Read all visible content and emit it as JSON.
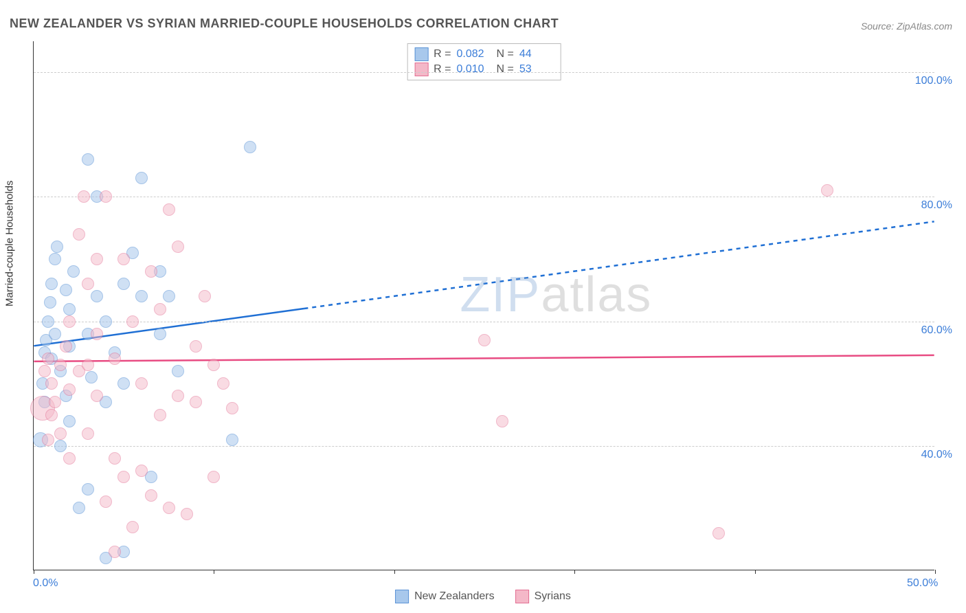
{
  "title": "NEW ZEALANDER VS SYRIAN MARRIED-COUPLE HOUSEHOLDS CORRELATION CHART",
  "source": "Source: ZipAtlas.com",
  "ylabel": "Married-couple Households",
  "watermark": {
    "zip": "ZIP",
    "atlas": "atlas"
  },
  "chart": {
    "type": "scatter",
    "background_color": "#ffffff",
    "grid_color": "#cccccc",
    "axis_color": "#333333",
    "tick_label_color": "#3b7dd8",
    "tick_label_fontsize": 16,
    "title_fontsize": 18,
    "xlim": [
      0,
      50
    ],
    "ylim": [
      20,
      105
    ],
    "x_ticks": [
      0,
      10,
      20,
      30,
      40,
      50
    ],
    "x_tick_labels": [
      "0.0%",
      "",
      "",
      "",
      "",
      "50.0%"
    ],
    "y_gridlines": [
      40,
      60,
      80,
      100
    ],
    "y_tick_labels": [
      "40.0%",
      "60.0%",
      "80.0%",
      "100.0%"
    ],
    "series": [
      {
        "name": "New Zealanders",
        "fill_color": "#a8c8ec",
        "stroke_color": "#5b93d6",
        "fill_opacity": 0.55,
        "marker_radius": 9,
        "R": "0.082",
        "N": "44",
        "trend": {
          "x0": 0,
          "y0": 56,
          "x1_solid": 15,
          "y1_solid": 62,
          "x1_dash": 50,
          "y1_dash": 76,
          "color": "#1f6fd4",
          "width": 2.5,
          "dash": "6,6"
        },
        "points": [
          {
            "x": 0.4,
            "y": 41,
            "r": 11
          },
          {
            "x": 0.5,
            "y": 50,
            "r": 9
          },
          {
            "x": 0.6,
            "y": 55,
            "r": 9
          },
          {
            "x": 0.7,
            "y": 57,
            "r": 9
          },
          {
            "x": 0.8,
            "y": 60,
            "r": 9
          },
          {
            "x": 0.9,
            "y": 63,
            "r": 9
          },
          {
            "x": 1.0,
            "y": 66,
            "r": 9
          },
          {
            "x": 1.2,
            "y": 70,
            "r": 9
          },
          {
            "x": 1.3,
            "y": 72,
            "r": 9
          },
          {
            "x": 1.5,
            "y": 52,
            "r": 9
          },
          {
            "x": 1.8,
            "y": 48,
            "r": 9
          },
          {
            "x": 1.5,
            "y": 40,
            "r": 9
          },
          {
            "x": 2.0,
            "y": 56,
            "r": 9
          },
          {
            "x": 2.0,
            "y": 62,
            "r": 9
          },
          {
            "x": 2.2,
            "y": 68,
            "r": 9
          },
          {
            "x": 2.5,
            "y": 30,
            "r": 9
          },
          {
            "x": 3.0,
            "y": 58,
            "r": 9
          },
          {
            "x": 3.0,
            "y": 86,
            "r": 9
          },
          {
            "x": 3.2,
            "y": 51,
            "r": 9
          },
          {
            "x": 3.5,
            "y": 64,
            "r": 9
          },
          {
            "x": 3.5,
            "y": 80,
            "r": 9
          },
          {
            "x": 4.0,
            "y": 60,
            "r": 9
          },
          {
            "x": 4.0,
            "y": 47,
            "r": 9
          },
          {
            "x": 4.0,
            "y": 22,
            "r": 9
          },
          {
            "x": 4.5,
            "y": 55,
            "r": 9
          },
          {
            "x": 5.0,
            "y": 66,
            "r": 9
          },
          {
            "x": 5.0,
            "y": 50,
            "r": 9
          },
          {
            "x": 5.0,
            "y": 23,
            "r": 9
          },
          {
            "x": 5.5,
            "y": 71,
            "r": 9
          },
          {
            "x": 6.0,
            "y": 83,
            "r": 9
          },
          {
            "x": 6.0,
            "y": 64,
            "r": 9
          },
          {
            "x": 6.5,
            "y": 35,
            "r": 9
          },
          {
            "x": 7.0,
            "y": 68,
            "r": 9
          },
          {
            "x": 7.0,
            "y": 58,
            "r": 9
          },
          {
            "x": 7.5,
            "y": 64,
            "r": 9
          },
          {
            "x": 8.0,
            "y": 52,
            "r": 9
          },
          {
            "x": 3.0,
            "y": 33,
            "r": 9
          },
          {
            "x": 2.0,
            "y": 44,
            "r": 9
          },
          {
            "x": 11.0,
            "y": 41,
            "r": 9
          },
          {
            "x": 12.0,
            "y": 88,
            "r": 9
          },
          {
            "x": 1.0,
            "y": 54,
            "r": 9
          },
          {
            "x": 0.6,
            "y": 47,
            "r": 9
          },
          {
            "x": 1.2,
            "y": 58,
            "r": 9
          },
          {
            "x": 1.8,
            "y": 65,
            "r": 9
          }
        ]
      },
      {
        "name": "Syrians",
        "fill_color": "#f4b8c8",
        "stroke_color": "#e36f93",
        "fill_opacity": 0.5,
        "marker_radius": 9,
        "R": "0.010",
        "N": "53",
        "trend": {
          "x0": 0,
          "y0": 53.5,
          "x1_solid": 50,
          "y1_solid": 54.5,
          "x1_dash": 50,
          "y1_dash": 54.5,
          "color": "#e84b82",
          "width": 2.5,
          "dash": ""
        },
        "points": [
          {
            "x": 0.5,
            "y": 46,
            "r": 18
          },
          {
            "x": 0.6,
            "y": 52,
            "r": 9
          },
          {
            "x": 0.8,
            "y": 54,
            "r": 9
          },
          {
            "x": 1.0,
            "y": 50,
            "r": 9
          },
          {
            "x": 1.2,
            "y": 47,
            "r": 9
          },
          {
            "x": 1.5,
            "y": 53,
            "r": 9
          },
          {
            "x": 1.8,
            "y": 56,
            "r": 9
          },
          {
            "x": 2.0,
            "y": 60,
            "r": 9
          },
          {
            "x": 2.0,
            "y": 49,
            "r": 9
          },
          {
            "x": 2.5,
            "y": 52,
            "r": 9
          },
          {
            "x": 2.5,
            "y": 74,
            "r": 9
          },
          {
            "x": 2.8,
            "y": 80,
            "r": 9
          },
          {
            "x": 3.0,
            "y": 66,
            "r": 9
          },
          {
            "x": 3.0,
            "y": 42,
            "r": 9
          },
          {
            "x": 3.5,
            "y": 48,
            "r": 9
          },
          {
            "x": 3.5,
            "y": 58,
            "r": 9
          },
          {
            "x": 4.0,
            "y": 31,
            "r": 9
          },
          {
            "x": 4.0,
            "y": 80,
            "r": 9
          },
          {
            "x": 4.5,
            "y": 54,
            "r": 9
          },
          {
            "x": 4.5,
            "y": 38,
            "r": 9
          },
          {
            "x": 5.0,
            "y": 70,
            "r": 9
          },
          {
            "x": 5.0,
            "y": 35,
            "r": 9
          },
          {
            "x": 5.5,
            "y": 60,
            "r": 9
          },
          {
            "x": 5.5,
            "y": 27,
            "r": 9
          },
          {
            "x": 6.0,
            "y": 50,
            "r": 9
          },
          {
            "x": 6.0,
            "y": 36,
            "r": 9
          },
          {
            "x": 6.5,
            "y": 68,
            "r": 9
          },
          {
            "x": 6.5,
            "y": 32,
            "r": 9
          },
          {
            "x": 7.0,
            "y": 45,
            "r": 9
          },
          {
            "x": 7.0,
            "y": 62,
            "r": 9
          },
          {
            "x": 7.5,
            "y": 78,
            "r": 9
          },
          {
            "x": 7.5,
            "y": 30,
            "r": 9
          },
          {
            "x": 8.0,
            "y": 72,
            "r": 9
          },
          {
            "x": 8.0,
            "y": 48,
            "r": 9
          },
          {
            "x": 8.5,
            "y": 29,
            "r": 9
          },
          {
            "x": 9.0,
            "y": 56,
            "r": 9
          },
          {
            "x": 9.0,
            "y": 47,
            "r": 9
          },
          {
            "x": 9.5,
            "y": 64,
            "r": 9
          },
          {
            "x": 10.0,
            "y": 53,
            "r": 9
          },
          {
            "x": 10.0,
            "y": 35,
            "r": 9
          },
          {
            "x": 10.5,
            "y": 50,
            "r": 9
          },
          {
            "x": 11.0,
            "y": 46,
            "r": 9
          },
          {
            "x": 0.8,
            "y": 41,
            "r": 9
          },
          {
            "x": 1.0,
            "y": 45,
            "r": 9
          },
          {
            "x": 1.5,
            "y": 42,
            "r": 9
          },
          {
            "x": 2.0,
            "y": 38,
            "r": 9
          },
          {
            "x": 3.0,
            "y": 53,
            "r": 9
          },
          {
            "x": 3.5,
            "y": 70,
            "r": 9
          },
          {
            "x": 25.0,
            "y": 57,
            "r": 9
          },
          {
            "x": 26.0,
            "y": 44,
            "r": 9
          },
          {
            "x": 38.0,
            "y": 26,
            "r": 9
          },
          {
            "x": 44.0,
            "y": 81,
            "r": 9
          },
          {
            "x": 4.5,
            "y": 23,
            "r": 9
          }
        ]
      }
    ]
  },
  "legend": {
    "items": [
      {
        "label": "New Zealanders",
        "fill": "#a8c8ec",
        "stroke": "#5b93d6"
      },
      {
        "label": "Syrians",
        "fill": "#f4b8c8",
        "stroke": "#e36f93"
      }
    ]
  }
}
